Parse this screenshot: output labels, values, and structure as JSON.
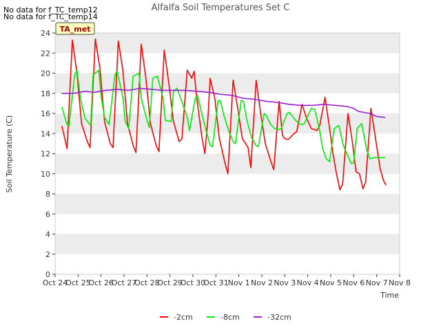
{
  "notes": [
    "No data for f_TC_temp12",
    "No data for f_TC_temp14"
  ],
  "site_badge": "TA_met",
  "colors": {
    "-2cm": "#ff0000",
    "-8cm": "#00ee00",
    "-32cm": "#9a1fd0",
    "band": "#ececec",
    "badge_fill": "#ffffc0",
    "badge_text": "#990000"
  },
  "chart_data": {
    "type": "line",
    "title": "Alfalfa Soil Temperatures Set C",
    "xlabel": "Time",
    "ylabel": "Soil Temperature (C)",
    "ylim": [
      0,
      24
    ],
    "yticks": [
      0,
      2,
      4,
      6,
      8,
      10,
      12,
      14,
      16,
      18,
      20,
      22,
      24
    ],
    "xlim": [
      "Oct 24",
      "Nov 8"
    ],
    "xticks": [
      "Oct 24",
      "Oct 25",
      "Oct 26",
      "Oct 27",
      "Oct 28",
      "Oct 29",
      "Oct 30",
      "Oct 31",
      "Nov 1",
      "Nov 2",
      "Nov 3",
      "Nov 4",
      "Nov 5",
      "Nov 6",
      "Nov 7",
      "Nov 8"
    ],
    "grid": "horizontal alternating bands",
    "legend_position": "bottom-center",
    "x_unit": "days since Oct 24",
    "series": [
      {
        "name": "-2cm",
        "x": [
          0.3,
          0.42,
          0.52,
          0.75,
          0.95,
          1.15,
          1.4,
          1.52,
          1.75,
          1.95,
          2.15,
          2.4,
          2.52,
          2.75,
          2.95,
          3.15,
          3.4,
          3.52,
          3.75,
          3.95,
          4.15,
          4.4,
          4.52,
          4.75,
          4.95,
          5.15,
          5.4,
          5.52,
          5.75,
          5.95,
          6.05,
          6.15,
          6.4,
          6.52,
          6.65,
          6.75,
          6.95,
          7.15,
          7.4,
          7.52,
          7.75,
          7.95,
          8.15,
          8.4,
          8.52,
          8.75,
          8.95,
          9.15,
          9.4,
          9.52,
          9.75,
          9.9,
          10.0,
          10.15,
          10.4,
          10.52,
          10.75,
          10.95,
          11.15,
          11.4,
          11.52,
          11.75,
          11.95,
          12.1,
          12.25,
          12.4,
          12.52,
          12.75,
          12.95,
          13.1,
          13.25,
          13.4,
          13.52,
          13.75,
          13.95,
          14.15,
          14.3,
          14.4
        ],
        "y": [
          14.7,
          13.5,
          12.5,
          23.3,
          20.0,
          15.0,
          13.2,
          12.6,
          23.4,
          20.5,
          15.2,
          13.0,
          12.6,
          23.2,
          20.3,
          15.0,
          12.8,
          12.1,
          22.9,
          19.5,
          15.0,
          12.8,
          12.2,
          22.3,
          19.0,
          15.2,
          13.2,
          13.5,
          20.3,
          19.5,
          20.2,
          17.8,
          13.5,
          12.0,
          15.5,
          19.5,
          17.5,
          13.5,
          11.0,
          10.0,
          19.3,
          16.5,
          13.5,
          12.6,
          10.6,
          19.3,
          16.0,
          13.0,
          11.2,
          10.4,
          17.2,
          13.8,
          13.5,
          13.4,
          14.0,
          14.2,
          16.9,
          15.5,
          14.5,
          14.3,
          14.8,
          17.6,
          14.5,
          12.0,
          10.0,
          8.4,
          9.0,
          16.0,
          13.0,
          10.2,
          10.0,
          8.5,
          9.2,
          16.5,
          13.5,
          10.5,
          9.3,
          8.9
        ]
      },
      {
        "name": "-8cm",
        "x": [
          0.3,
          0.5,
          0.6,
          0.85,
          0.95,
          1.1,
          1.3,
          1.55,
          1.65,
          1.9,
          2.0,
          2.15,
          2.35,
          2.6,
          2.7,
          2.95,
          3.05,
          3.2,
          3.4,
          3.65,
          3.75,
          4.0,
          4.1,
          4.25,
          4.45,
          4.7,
          4.8,
          5.05,
          5.15,
          5.3,
          5.5,
          5.75,
          5.85,
          6.1,
          6.2,
          6.35,
          6.55,
          6.75,
          6.85,
          7.1,
          7.2,
          7.35,
          7.55,
          7.75,
          7.85,
          8.1,
          8.2,
          8.35,
          8.55,
          8.75,
          8.85,
          9.1,
          9.2,
          9.35,
          9.55,
          9.75,
          9.85,
          10.1,
          10.2,
          10.4,
          10.6,
          10.75,
          10.85,
          11.15,
          11.3,
          11.5,
          11.65,
          11.8,
          11.95,
          12.15,
          12.35,
          12.55,
          12.7,
          12.9,
          13.0,
          13.15,
          13.35,
          13.55,
          13.7,
          13.9,
          14.0,
          14.15,
          14.35
        ],
        "y": [
          16.6,
          15.0,
          14.7,
          19.8,
          20.3,
          17.5,
          15.5,
          14.8,
          19.8,
          20.3,
          17.7,
          15.6,
          14.9,
          19.8,
          20.2,
          17.6,
          15.2,
          14.5,
          19.7,
          20.0,
          17.5,
          15.3,
          14.6,
          19.5,
          19.7,
          17.5,
          15.3,
          15.2,
          18.2,
          18.5,
          17.3,
          15.6,
          14.3,
          17.5,
          17.8,
          16.3,
          14.5,
          12.8,
          12.7,
          17.3,
          17.2,
          15.8,
          14.3,
          13.2,
          13.0,
          17.3,
          17.2,
          15.3,
          13.6,
          12.8,
          12.7,
          16.0,
          15.8,
          15.0,
          14.5,
          14.4,
          14.5,
          16.0,
          16.1,
          15.5,
          15.0,
          14.9,
          15.0,
          16.5,
          16.4,
          14.5,
          12.5,
          11.5,
          11.2,
          14.5,
          14.8,
          12.8,
          12.0,
          11.0,
          11.1,
          14.5,
          15.0,
          12.5,
          11.5,
          11.6,
          11.6,
          11.6,
          11.6
        ]
      },
      {
        "name": "-32cm",
        "x": [
          0.3,
          0.8,
          1.3,
          1.7,
          2.2,
          2.7,
          3.2,
          3.7,
          4.2,
          4.7,
          5.2,
          5.7,
          6.2,
          6.7,
          7.2,
          7.7,
          8.2,
          8.7,
          9.2,
          9.7,
          10.2,
          10.7,
          11.2,
          11.7,
          12.2,
          12.7,
          13.0,
          13.2,
          13.7,
          14.0,
          14.35
        ],
        "y": [
          18.0,
          18.0,
          18.2,
          18.1,
          18.3,
          18.4,
          18.3,
          18.5,
          18.4,
          18.3,
          18.3,
          18.3,
          18.2,
          18.1,
          17.9,
          17.8,
          17.5,
          17.4,
          17.2,
          17.1,
          16.9,
          16.8,
          16.8,
          16.9,
          16.8,
          16.7,
          16.5,
          16.2,
          16.0,
          15.7,
          15.6
        ]
      }
    ]
  }
}
